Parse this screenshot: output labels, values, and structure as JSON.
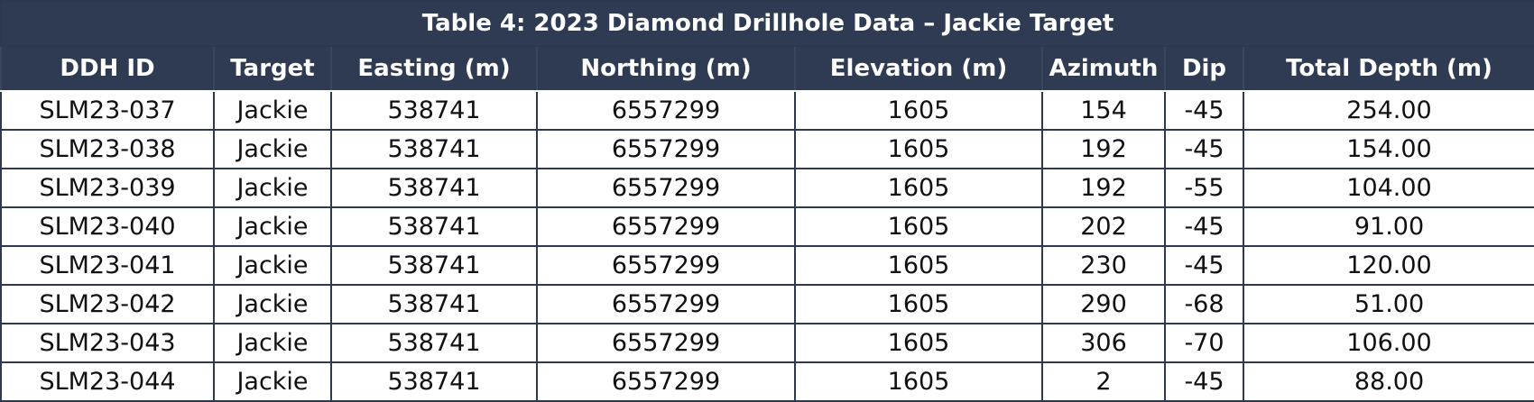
{
  "title": "Table 4: 2023 Diamond Drillhole Data – Jackie Target",
  "table": {
    "header": [
      "DDH ID",
      "Target",
      "Easting (m)",
      "Northing (m)",
      "Elevation (m)",
      "Azimuth",
      "Dip",
      "Total Depth (m)"
    ],
    "rows": [
      [
        "SLM23-037",
        "Jackie",
        "538741",
        "6557299",
        "1605",
        "154",
        "-45",
        "254.00"
      ],
      [
        "SLM23-038",
        "Jackie",
        "538741",
        "6557299",
        "1605",
        "192",
        "-45",
        "154.00"
      ],
      [
        "SLM23-039",
        "Jackie",
        "538741",
        "6557299",
        "1605",
        "192",
        "-55",
        "104.00"
      ],
      [
        "SLM23-040",
        "Jackie",
        "538741",
        "6557299",
        "1605",
        "202",
        "-45",
        "91.00"
      ],
      [
        "SLM23-041",
        "Jackie",
        "538741",
        "6557299",
        "1605",
        "230",
        "-45",
        "120.00"
      ],
      [
        "SLM23-042",
        "Jackie",
        "538741",
        "6557299",
        "1605",
        "290",
        "-68",
        "51.00"
      ],
      [
        "SLM23-043",
        "Jackie",
        "538741",
        "6557299",
        "1605",
        "306",
        "-70",
        "106.00"
      ],
      [
        "SLM23-044",
        "Jackie",
        "538741",
        "6557299",
        "1605",
        "2",
        "-45",
        "88.00"
      ]
    ]
  }
}
